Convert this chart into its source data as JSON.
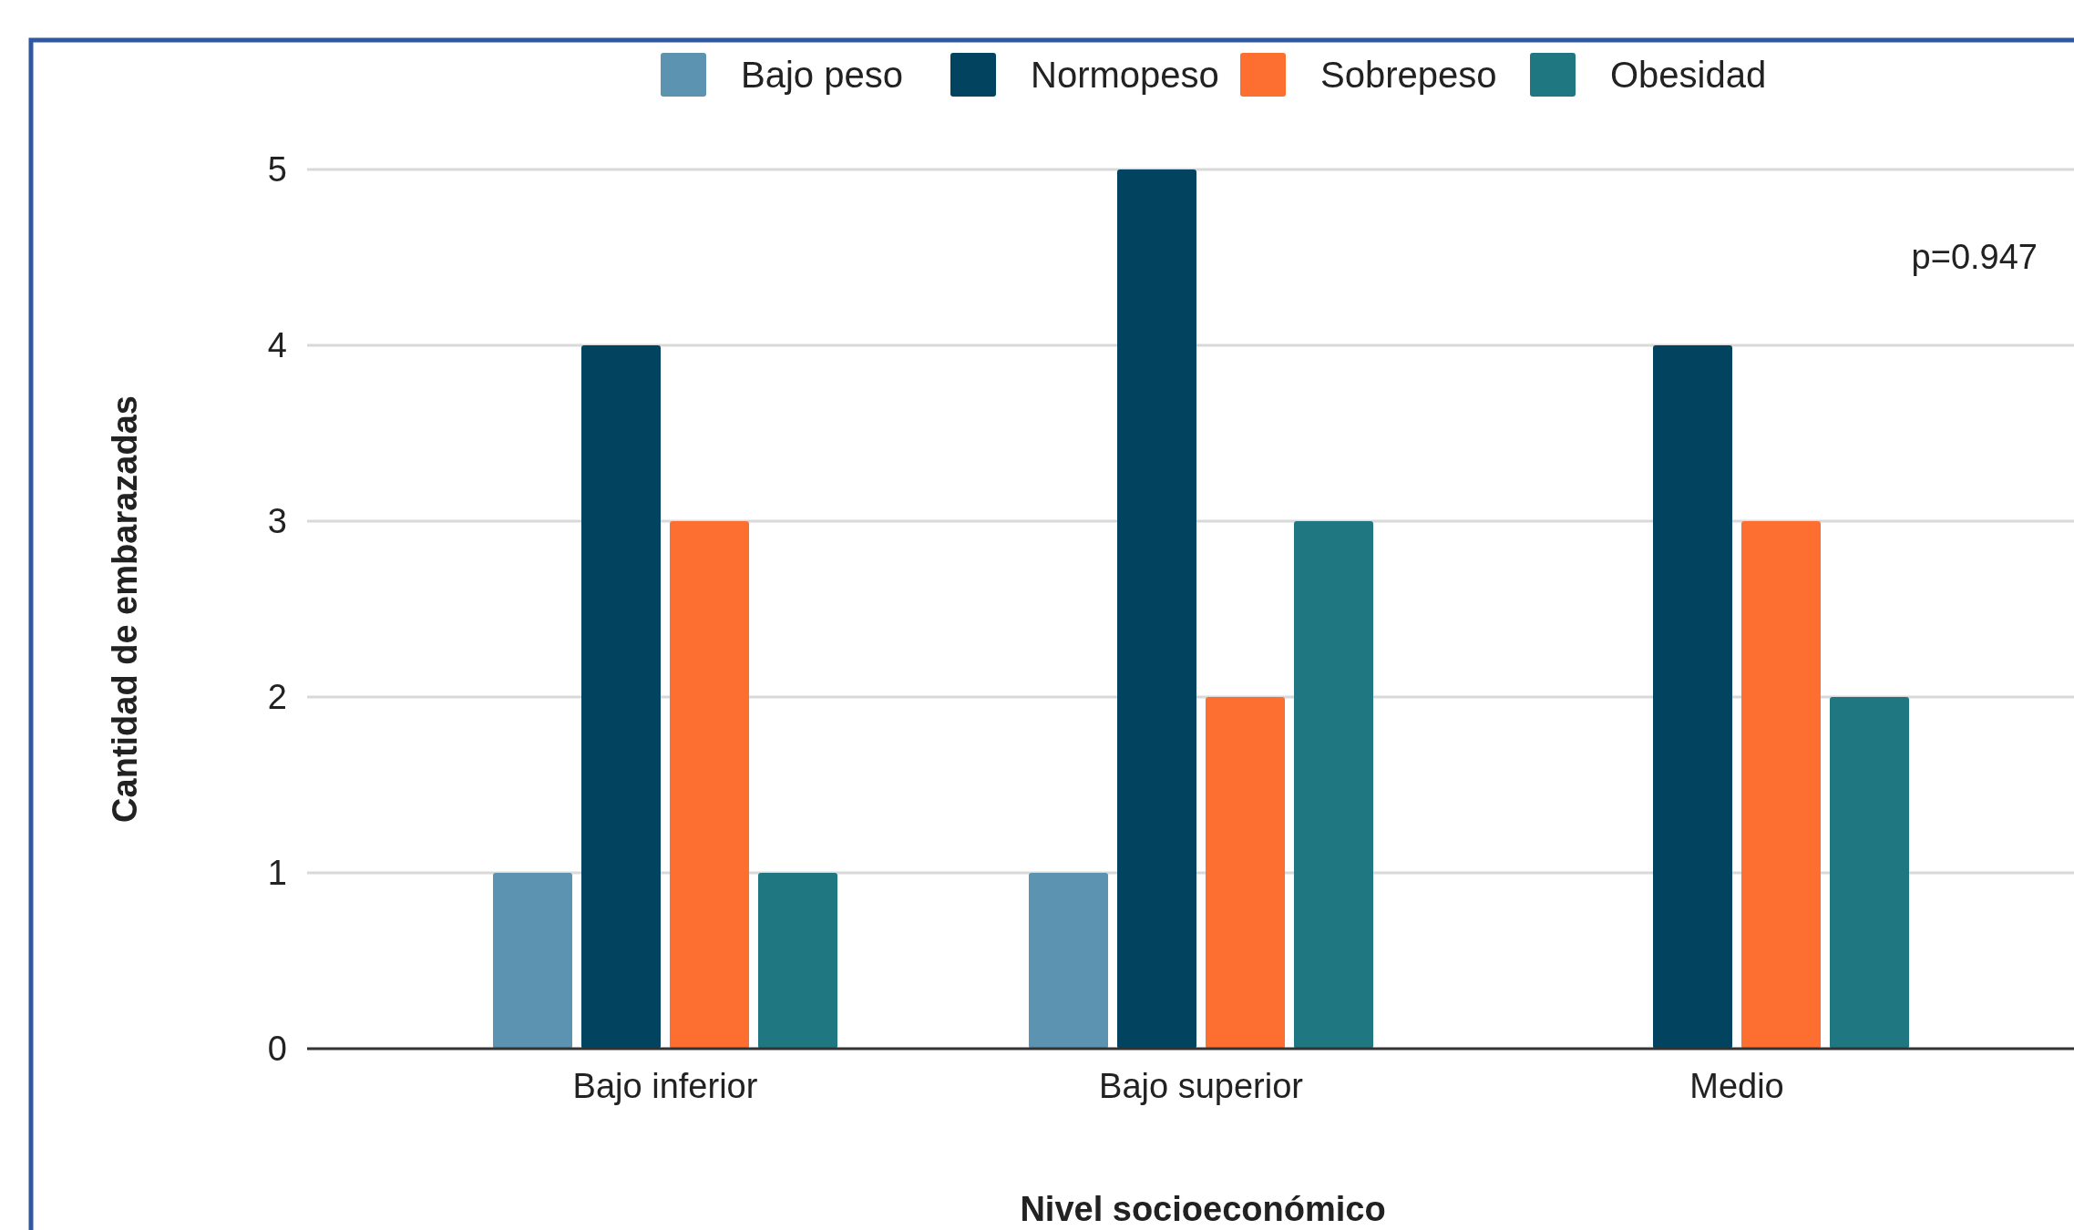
{
  "chart_data": {
    "type": "bar",
    "xlabel": "Nivel socioeconómico",
    "ylabel": "Cantidad de embarazadas",
    "categories": [
      "Bajo inferior",
      "Bajo superior",
      "Medio"
    ],
    "series": [
      {
        "name": "Bajo peso",
        "color": "#5b93b0",
        "values": [
          1,
          1,
          0
        ]
      },
      {
        "name": "Normopeso",
        "color": "#02435f",
        "values": [
          4,
          5,
          4
        ]
      },
      {
        "name": "Sobrepeso",
        "color": "#fd6f31",
        "values": [
          3,
          2,
          3
        ]
      },
      {
        "name": "Obesidad",
        "color": "#1f7782",
        "values": [
          1,
          3,
          2
        ]
      }
    ],
    "ylim": [
      0,
      5
    ],
    "yticks": [
      0,
      1,
      2,
      3,
      4,
      5
    ],
    "grid": "y",
    "legend": "top",
    "annotations": [
      "p=0.947"
    ]
  }
}
